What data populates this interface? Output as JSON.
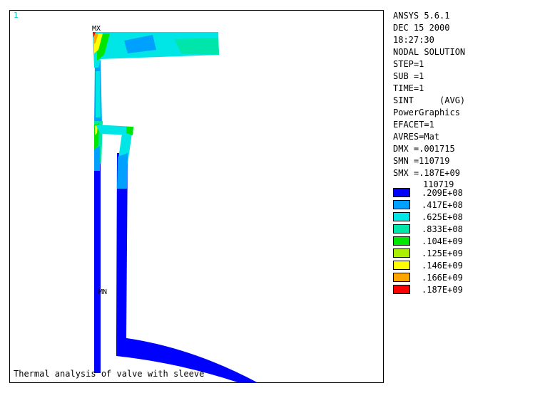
{
  "viewport": {
    "window_number": "1",
    "max_label": "MX",
    "min_label": "MN",
    "caption": "Thermal analysis of valve with sleeve"
  },
  "info": [
    "ANSYS 5.6.1",
    "DEC 15 2000",
    "18:27:30",
    "NODAL SOLUTION",
    "STEP=1",
    "SUB =1",
    "TIME=1",
    "SINT     (AVG)",
    "PowerGraphics",
    "EFACET=1",
    "AVRES=Mat",
    "DMX =.001715",
    "SMN =110719",
    "SMX =.187E+09"
  ],
  "legend": {
    "min_value": "110719",
    "entries": [
      {
        "value": ".209E+08",
        "color": "#0000ff"
      },
      {
        "value": ".417E+08",
        "color": "#00a0ff"
      },
      {
        "value": ".625E+08",
        "color": "#00e6e6"
      },
      {
        "value": ".833E+08",
        "color": "#00e6aa"
      },
      {
        "value": ".104E+09",
        "color": "#00e600"
      },
      {
        "value": ".125E+09",
        "color": "#aaf000"
      },
      {
        "value": ".146E+09",
        "color": "#ffff00"
      },
      {
        "value": ".166E+09",
        "color": "#ffa500"
      },
      {
        "value": ".187E+09",
        "color": "#ff0000"
      }
    ]
  }
}
